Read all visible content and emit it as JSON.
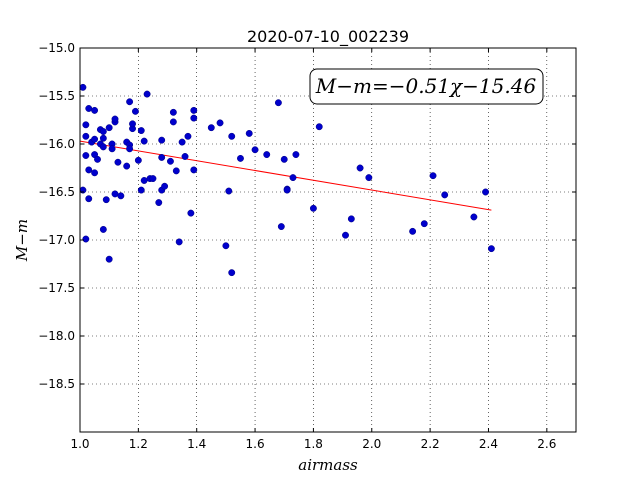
{
  "chart_data": {
    "type": "scatter",
    "title": "2020-07-10_002239",
    "xlabel": "airmass",
    "ylabel": "M−m",
    "xlim": [
      1.0,
      2.7
    ],
    "ylim": [
      -15.0,
      -19.0
    ],
    "y_inverted": true,
    "grid": true,
    "x_ticks": [
      1.0,
      1.2,
      1.4,
      1.6,
      1.8,
      2.0,
      2.2,
      2.4,
      2.6
    ],
    "x_tick_labels": [
      "1.0",
      "1.2",
      "1.4",
      "1.6",
      "1.8",
      "2.0",
      "2.2",
      "2.4",
      "2.6"
    ],
    "y_ticks": [
      -15.0,
      -15.5,
      -16.0,
      -16.5,
      -17.0,
      -17.5,
      -18.0,
      -18.5
    ],
    "y_tick_labels": [
      "−15.0",
      "−15.5",
      "−16.0",
      "−16.5",
      "−17.0",
      "−17.5",
      "−18.0",
      "−18.5"
    ],
    "annotation": "M−m=−0.51χ−15.46",
    "annotation_placement": "top-right",
    "point_color": "#0000cc",
    "fit_color": "#ff0000",
    "fit": {
      "slope": -0.51,
      "intercept": -15.46,
      "x_range": [
        1.0,
        2.41
      ]
    },
    "points": [
      [
        1.01,
        -15.41
      ],
      [
        1.01,
        -16.48
      ],
      [
        1.02,
        -15.8
      ],
      [
        1.02,
        -15.92
      ],
      [
        1.02,
        -16.12
      ],
      [
        1.02,
        -16.99
      ],
      [
        1.03,
        -15.63
      ],
      [
        1.03,
        -16.27
      ],
      [
        1.03,
        -16.57
      ],
      [
        1.04,
        -15.98
      ],
      [
        1.05,
        -15.65
      ],
      [
        1.05,
        -15.95
      ],
      [
        1.05,
        -16.11
      ],
      [
        1.05,
        -16.3
      ],
      [
        1.06,
        -16.16
      ],
      [
        1.07,
        -15.85
      ],
      [
        1.07,
        -16.0
      ],
      [
        1.08,
        -15.87
      ],
      [
        1.08,
        -15.94
      ],
      [
        1.08,
        -16.03
      ],
      [
        1.08,
        -16.89
      ],
      [
        1.09,
        -16.58
      ],
      [
        1.1,
        -15.83
      ],
      [
        1.1,
        -17.2
      ],
      [
        1.11,
        -16.0
      ],
      [
        1.11,
        -16.05
      ],
      [
        1.12,
        -15.77
      ],
      [
        1.12,
        -16.52
      ],
      [
        1.12,
        -15.74
      ],
      [
        1.13,
        -16.19
      ],
      [
        1.14,
        -16.54
      ],
      [
        1.16,
        -16.23
      ],
      [
        1.16,
        -15.98
      ],
      [
        1.17,
        -16.01
      ],
      [
        1.17,
        -16.05
      ],
      [
        1.17,
        -15.56
      ],
      [
        1.18,
        -15.84
      ],
      [
        1.18,
        -15.79
      ],
      [
        1.19,
        -15.66
      ],
      [
        1.2,
        -16.17
      ],
      [
        1.21,
        -15.86
      ],
      [
        1.21,
        -16.48
      ],
      [
        1.22,
        -15.97
      ],
      [
        1.22,
        -16.38
      ],
      [
        1.23,
        -15.48
      ],
      [
        1.24,
        -16.36
      ],
      [
        1.25,
        -16.36
      ],
      [
        1.27,
        -16.61
      ],
      [
        1.28,
        -16.14
      ],
      [
        1.28,
        -15.96
      ],
      [
        1.28,
        -16.48
      ],
      [
        1.29,
        -16.44
      ],
      [
        1.31,
        -16.18
      ],
      [
        1.32,
        -15.67
      ],
      [
        1.32,
        -15.77
      ],
      [
        1.33,
        -16.28
      ],
      [
        1.34,
        -17.02
      ],
      [
        1.35,
        -15.98
      ],
      [
        1.36,
        -16.13
      ],
      [
        1.37,
        -15.92
      ],
      [
        1.38,
        -16.72
      ],
      [
        1.39,
        -16.27
      ],
      [
        1.39,
        -15.65
      ],
      [
        1.39,
        -15.73
      ],
      [
        1.45,
        -15.83
      ],
      [
        1.48,
        -15.78
      ],
      [
        1.5,
        -17.06
      ],
      [
        1.51,
        -16.49
      ],
      [
        1.52,
        -17.34
      ],
      [
        1.52,
        -15.92
      ],
      [
        1.55,
        -16.15
      ],
      [
        1.58,
        -15.89
      ],
      [
        1.6,
        -16.06
      ],
      [
        1.64,
        -16.11
      ],
      [
        1.68,
        -15.57
      ],
      [
        1.69,
        -16.86
      ],
      [
        1.7,
        -16.16
      ],
      [
        1.71,
        -16.47
      ],
      [
        1.71,
        -16.48
      ],
      [
        1.73,
        -16.35
      ],
      [
        1.74,
        -16.11
      ],
      [
        1.8,
        -16.67
      ],
      [
        1.82,
        -15.82
      ],
      [
        1.91,
        -16.95
      ],
      [
        1.93,
        -16.78
      ],
      [
        1.96,
        -16.25
      ],
      [
        1.99,
        -16.35
      ],
      [
        2.14,
        -16.91
      ],
      [
        2.18,
        -16.83
      ],
      [
        2.21,
        -16.33
      ],
      [
        2.25,
        -16.53
      ],
      [
        2.35,
        -16.76
      ],
      [
        2.39,
        -16.5
      ],
      [
        2.41,
        -17.09
      ]
    ]
  }
}
